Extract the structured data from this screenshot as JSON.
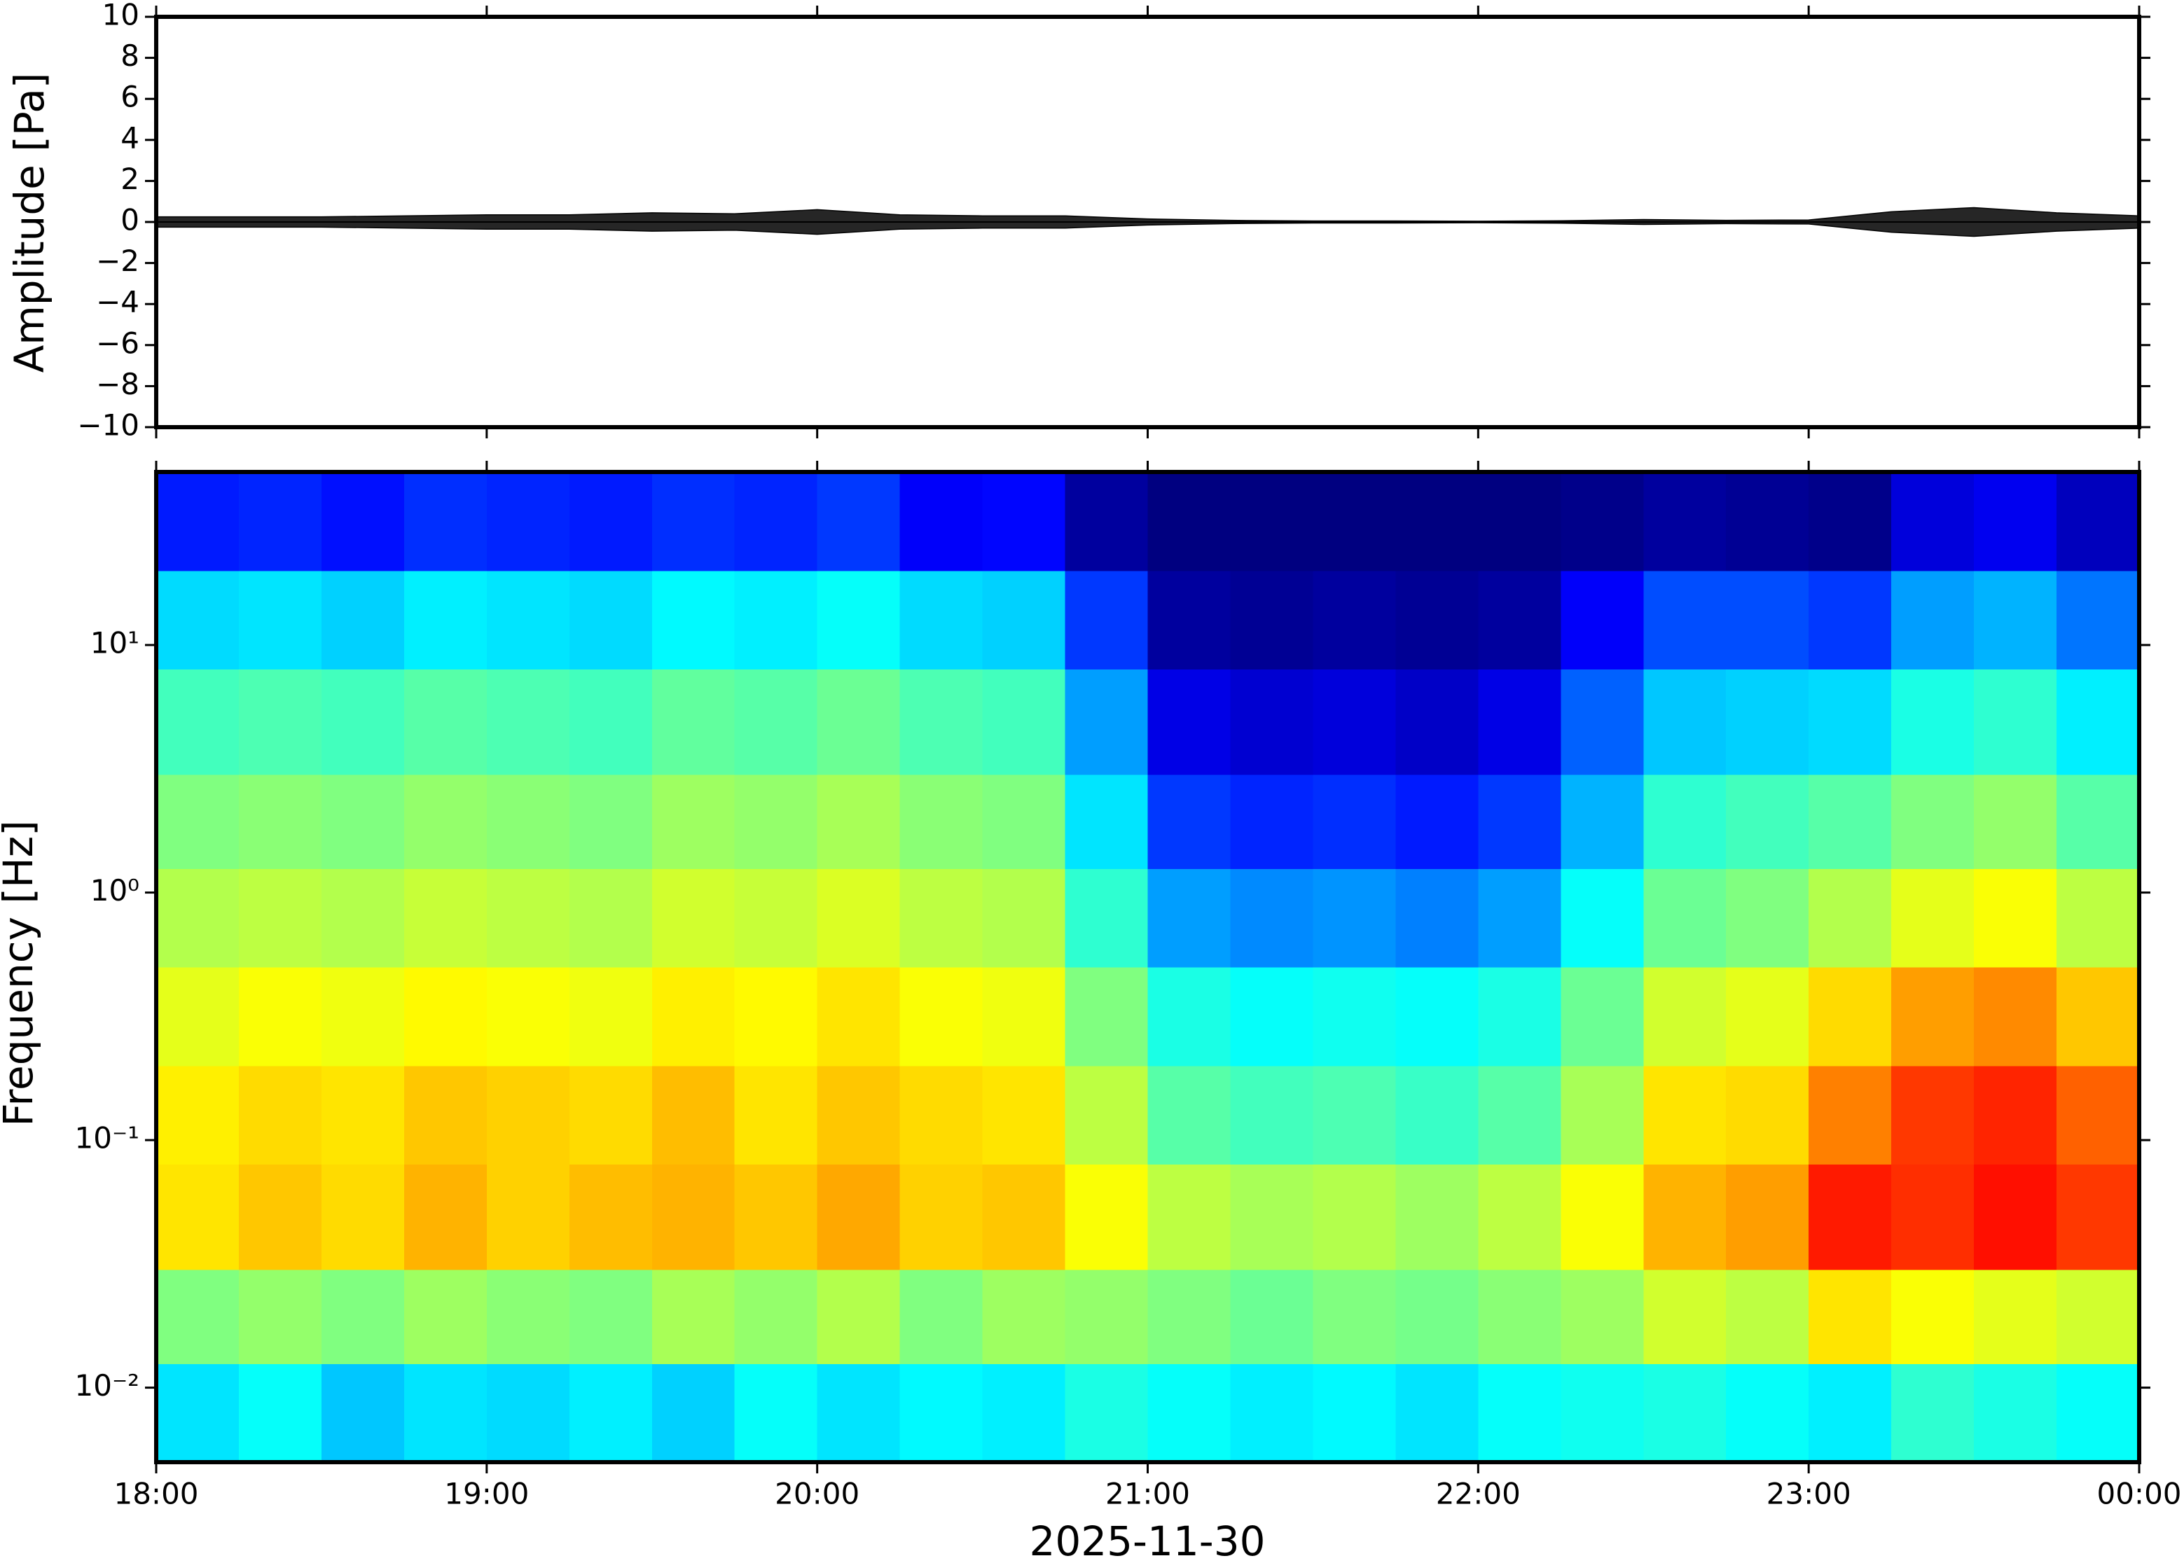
{
  "chart_data": [
    {
      "type": "envelope",
      "ylabel": "Amplitude [Pa]",
      "color": "#000000",
      "xlim": [
        18,
        24
      ],
      "ylim": [
        -10,
        10
      ],
      "yticks": [
        {
          "value": -10,
          "label": "−10"
        },
        {
          "value": -8,
          "label": "−8"
        },
        {
          "value": -6,
          "label": "−6"
        },
        {
          "value": -4,
          "label": "−4"
        },
        {
          "value": -2,
          "label": "−2"
        },
        0,
        2,
        4,
        6,
        8,
        10
      ],
      "x": [
        18,
        18.25,
        18.5,
        18.75,
        19,
        19.25,
        19.5,
        19.75,
        20,
        20.25,
        20.5,
        20.75,
        21,
        21.25,
        21.5,
        21.75,
        22,
        22.25,
        22.5,
        22.75,
        23,
        23.25,
        23.5,
        23.75,
        24
      ],
      "values": [
        0.25,
        0.25,
        0.25,
        0.3,
        0.35,
        0.35,
        0.45,
        0.4,
        0.6,
        0.35,
        0.3,
        0.3,
        0.15,
        0.08,
        0.05,
        0.05,
        0.04,
        0.06,
        0.12,
        0.08,
        0.1,
        0.5,
        0.7,
        0.45,
        0.3
      ]
    },
    {
      "type": "heatmap",
      "ylabel": "Frequency [Hz]",
      "xlabel": "2025-11-30",
      "colormap": "jet",
      "log_y": true,
      "xlim": [
        18,
        24
      ],
      "xticks": [
        {
          "value": 18,
          "label": "18:00"
        },
        {
          "value": 19,
          "label": "19:00"
        },
        {
          "value": 20,
          "label": "20:00"
        },
        {
          "value": 21,
          "label": "21:00"
        },
        {
          "value": 22,
          "label": "22:00"
        },
        {
          "value": 23,
          "label": "23:00"
        },
        {
          "value": 24,
          "label": "00:00"
        }
      ],
      "ylim": [
        0.005,
        50
      ],
      "yticks": [
        {
          "value": 0.01,
          "label": "10⁻²"
        },
        {
          "value": 0.1,
          "label": "10⁻¹"
        },
        {
          "value": 1,
          "label": "10⁰"
        },
        {
          "value": 10,
          "label": "10¹"
        }
      ],
      "zlim": [
        0,
        10
      ],
      "xbins": [
        18,
        18.25,
        18.5,
        18.75,
        19,
        19.25,
        19.5,
        19.75,
        20,
        20.25,
        20.5,
        20.75,
        21,
        21.25,
        21.5,
        21.75,
        22,
        22.25,
        22.5,
        22.75,
        23,
        23.25,
        23.5,
        23.75,
        24
      ],
      "ybins": [
        0.005,
        0.0125,
        0.03,
        0.08,
        0.2,
        0.5,
        1.25,
        3,
        8,
        20,
        50
      ],
      "z": [
        [
          3.5,
          3.8,
          3.2,
          3.5,
          3.4,
          3.6,
          3.3,
          3.8,
          3.5,
          3.7,
          3.6,
          4,
          3.8,
          3.6,
          3.7,
          3.5,
          3.8,
          3.9,
          4,
          3.8,
          3.6,
          4.2,
          4,
          3.8
        ],
        [
          5,
          5.2,
          5,
          5.3,
          5.1,
          5,
          5.4,
          5.2,
          5.5,
          5,
          5.3,
          5.2,
          5,
          4.8,
          5,
          4.9,
          5.1,
          5.3,
          5.8,
          5.6,
          6.5,
          6.2,
          6,
          5.8
        ],
        [
          6.5,
          6.8,
          6.6,
          7,
          6.7,
          6.9,
          7,
          6.8,
          7.1,
          6.7,
          6.8,
          6.2,
          5.6,
          5.4,
          5.5,
          5.3,
          5.6,
          6.2,
          7,
          7.2,
          8.5,
          8.3,
          8.6,
          8.2
        ],
        [
          6.4,
          6.6,
          6.5,
          6.8,
          6.7,
          6.6,
          6.9,
          6.5,
          6.8,
          6.6,
          6.5,
          5.6,
          4.6,
          4.4,
          4.5,
          4.3,
          4.6,
          5.4,
          6.5,
          6.6,
          7.5,
          8.2,
          8.4,
          7.8
        ],
        [
          6,
          6.2,
          6.1,
          6.3,
          6.2,
          6.1,
          6.4,
          6.3,
          6.5,
          6.2,
          6.1,
          5,
          4,
          3.8,
          3.9,
          3.8,
          4,
          4.8,
          5.8,
          6,
          6.6,
          7.2,
          7.4,
          6.8
        ],
        [
          5.5,
          5.6,
          5.5,
          5.7,
          5.6,
          5.5,
          5.8,
          5.7,
          5.9,
          5.6,
          5.5,
          4.2,
          2.8,
          2.6,
          2.7,
          2.5,
          2.8,
          3.8,
          4.8,
          5,
          5.5,
          6,
          6.2,
          5.6
        ],
        [
          5,
          5.1,
          5,
          5.2,
          5.1,
          5,
          5.3,
          5.2,
          5.4,
          5.1,
          5,
          3.5,
          1.8,
          1.6,
          1.7,
          1.5,
          1.8,
          3,
          4.2,
          4.4,
          4.6,
          5,
          5.2,
          4.6
        ],
        [
          4.4,
          4.5,
          4.4,
          4.6,
          4.5,
          4.4,
          4.7,
          4.6,
          4.8,
          4.5,
          4.4,
          2.8,
          1,
          0.8,
          0.9,
          0.7,
          1,
          2.2,
          3.2,
          3.3,
          3.4,
          4,
          4.2,
          3.6
        ],
        [
          3.4,
          3.5,
          3.3,
          3.6,
          3.5,
          3.4,
          3.7,
          3.6,
          3.8,
          3.4,
          3.3,
          1.8,
          0.3,
          0.2,
          0.3,
          0.2,
          0.3,
          1.2,
          2,
          2,
          1.8,
          2.8,
          3,
          2.4
        ],
        [
          1.5,
          1.6,
          1.4,
          1.7,
          1.6,
          1.5,
          1.7,
          1.6,
          1.8,
          1.2,
          1.3,
          0.3,
          0,
          0,
          0,
          0,
          0,
          0.1,
          0.3,
          0.2,
          0.1,
          0.9,
          1.1,
          0.6
        ]
      ]
    }
  ]
}
